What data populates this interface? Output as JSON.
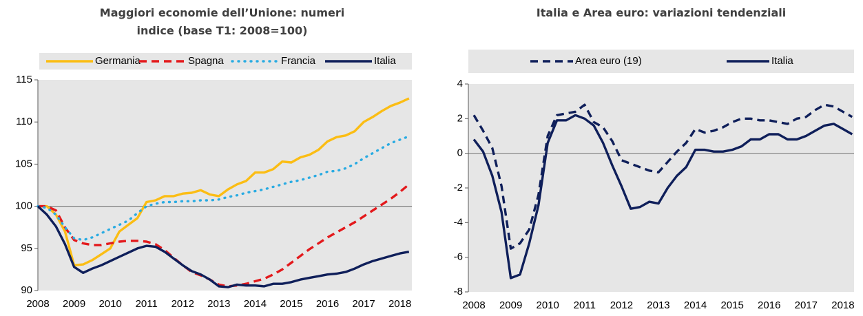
{
  "chart_data": [
    {
      "type": "line",
      "title": "Maggiori economie dell’Unione: numeri indice (base T1: 2008=100)",
      "x": [
        2008,
        2008.25,
        2008.5,
        2008.75,
        2009,
        2009.25,
        2009.5,
        2009.75,
        2010,
        2010.25,
        2010.5,
        2010.75,
        2011,
        2011.25,
        2011.5,
        2011.75,
        2012,
        2012.25,
        2012.5,
        2012.75,
        2013,
        2013.25,
        2013.5,
        2013.75,
        2014,
        2014.25,
        2014.5,
        2014.75,
        2015,
        2015.25,
        2015.5,
        2015.75,
        2016,
        2016.25,
        2016.5,
        2016.75,
        2017,
        2017.25,
        2017.5,
        2017.75,
        2018,
        2018.25
      ],
      "series": [
        {
          "name": "Germania",
          "color": "#fbbd14",
          "dash": "solid",
          "values": [
            100,
            100,
            99,
            97,
            93,
            93.1,
            93.6,
            94.3,
            95,
            97,
            97.8,
            98.6,
            100.5,
            100.7,
            101.2,
            101.2,
            101.5,
            101.6,
            101.9,
            101.4,
            101.2,
            102,
            102.6,
            103,
            104,
            104,
            104.4,
            105.3,
            105.2,
            105.8,
            106.1,
            106.7,
            107.7,
            108.2,
            108.4,
            108.9,
            110,
            110.6,
            111.3,
            111.9,
            112.3,
            112.8
          ]
        },
        {
          "name": "Spagna",
          "color": "#e3191c",
          "dash": "dashed",
          "values": [
            100,
            100,
            99.5,
            97.5,
            96,
            95.6,
            95.4,
            95.4,
            95.6,
            95.8,
            95.9,
            95.9,
            95.8,
            95.5,
            94.8,
            93.9,
            93,
            92.2,
            91.8,
            91.3,
            90.7,
            90.5,
            90.6,
            90.8,
            91.1,
            91.4,
            91.9,
            92.5,
            93.3,
            94.1,
            94.9,
            95.6,
            96.3,
            96.9,
            97.5,
            98.1,
            98.8,
            99.5,
            100.2,
            100.9,
            101.7,
            102.6
          ]
        },
        {
          "name": "Francia",
          "color": "#29abe2",
          "dash": "dotted",
          "values": [
            100,
            99.8,
            99,
            97.5,
            96.2,
            96,
            96.3,
            96.8,
            97.3,
            97.8,
            98.3,
            99.2,
            100,
            100.3,
            100.5,
            100.5,
            100.6,
            100.6,
            100.7,
            100.7,
            100.8,
            101.1,
            101.3,
            101.6,
            101.8,
            102,
            102.3,
            102.6,
            102.9,
            103.1,
            103.4,
            103.7,
            104.1,
            104.2,
            104.5,
            105,
            105.7,
            106.3,
            106.9,
            107.5,
            107.9,
            108.3
          ]
        },
        {
          "name": "Italia",
          "color": "#0f1f5a",
          "dash": "solid",
          "values": [
            100,
            99,
            97.6,
            95.5,
            92.8,
            92.1,
            92.6,
            93,
            93.5,
            94,
            94.5,
            95,
            95.3,
            95.2,
            94.6,
            93.8,
            93,
            92.3,
            91.9,
            91.3,
            90.5,
            90.4,
            90.7,
            90.6,
            90.6,
            90.5,
            90.8,
            90.8,
            91,
            91.3,
            91.5,
            91.7,
            91.9,
            92,
            92.2,
            92.6,
            93.1,
            93.5,
            93.8,
            94.1,
            94.4,
            94.6
          ]
        }
      ],
      "xlim": [
        2008,
        2018.33
      ],
      "xticks": [
        2008,
        2009,
        2010,
        2011,
        2012,
        2013,
        2014,
        2015,
        2016,
        2017,
        2018
      ],
      "ylim": [
        90,
        115
      ],
      "yticks": [
        90,
        95,
        100,
        105,
        110,
        115
      ],
      "reference_line": 100,
      "legend": "top"
    },
    {
      "type": "line",
      "title": "Italia e Area euro: variazioni tendenziali",
      "x": [
        2008,
        2008.25,
        2008.5,
        2008.75,
        2009,
        2009.25,
        2009.5,
        2009.75,
        2010,
        2010.25,
        2010.5,
        2010.75,
        2011,
        2011.25,
        2011.5,
        2011.75,
        2012,
        2012.25,
        2012.5,
        2012.75,
        2013,
        2013.25,
        2013.5,
        2013.75,
        2014,
        2014.25,
        2014.5,
        2014.75,
        2015,
        2015.25,
        2015.5,
        2015.75,
        2016,
        2016.25,
        2016.5,
        2016.75,
        2017,
        2017.25,
        2017.5,
        2017.75,
        2018,
        2018.25
      ],
      "series": [
        {
          "name": "Area euro (19)",
          "color": "#0f1f5a",
          "dash": "dashed",
          "values": [
            2.2,
            1.3,
            0.3,
            -1.9,
            -5.5,
            -5.2,
            -4.4,
            -2.4,
            1,
            2.2,
            2.3,
            2.4,
            2.8,
            1.8,
            1.5,
            0.7,
            -0.4,
            -0.6,
            -0.8,
            -1,
            -1.1,
            -0.5,
            0.1,
            0.6,
            1.4,
            1.2,
            1.3,
            1.5,
            1.8,
            2,
            2,
            1.9,
            1.9,
            1.8,
            1.7,
            2,
            2.1,
            2.5,
            2.8,
            2.7,
            2.4,
            2.1
          ]
        },
        {
          "name": "Italia",
          "color": "#0f1f5a",
          "dash": "solid",
          "values": [
            0.8,
            0.1,
            -1.3,
            -3.4,
            -7.2,
            -7,
            -5.2,
            -3,
            0.6,
            1.9,
            1.9,
            2.2,
            2,
            1.6,
            0.6,
            -0.7,
            -1.9,
            -3.2,
            -3.1,
            -2.8,
            -2.9,
            -2,
            -1.3,
            -0.8,
            0.2,
            0.2,
            0.1,
            0.1,
            0.2,
            0.4,
            0.8,
            0.8,
            1.1,
            1.1,
            0.8,
            0.8,
            1,
            1.3,
            1.6,
            1.7,
            1.4,
            1.1
          ]
        }
      ],
      "xlim": [
        2007.85,
        2018.3
      ],
      "xticks": [
        2008,
        2009,
        2010,
        2011,
        2012,
        2013,
        2014,
        2015,
        2016,
        2017,
        2018
      ],
      "ylim": [
        -8,
        4
      ],
      "yticks": [
        -8,
        -6,
        -4,
        -2,
        0,
        2,
        4
      ],
      "reference_line": 0,
      "legend": "top"
    }
  ]
}
